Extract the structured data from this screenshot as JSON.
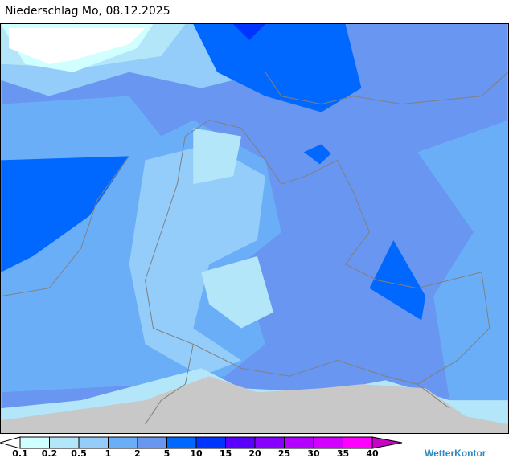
{
  "title": "Niederschlag Mo, 08.12.2025",
  "legend": {
    "ticks": [
      "0.1",
      "0.2",
      "0.5",
      "1",
      "2",
      "5",
      "10",
      "15",
      "20",
      "25",
      "30",
      "35",
      "40"
    ],
    "colors": [
      "#d0ffff",
      "#b4e6fa",
      "#94ccfa",
      "#6aaef8",
      "#6896f0",
      "#0068ff",
      "#0034ff",
      "#5a00ff",
      "#8800ff",
      "#b400ff",
      "#d200ff",
      "#ff00ff"
    ],
    "below_color": "#ffffff",
    "above_color": "#c800c8"
  },
  "colors": {
    "no_data": "#c8c8c8",
    "borders": "#808080"
  },
  "logo": "WetterKontor"
}
